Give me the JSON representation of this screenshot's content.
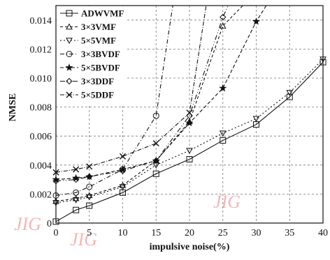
{
  "chart_data": {
    "type": "line",
    "xlabel": "impulsive noise(%)",
    "ylabel": "NMSE",
    "x_ticks": [
      0,
      5,
      10,
      15,
      20,
      25,
      30,
      35,
      40
    ],
    "y_ticks": [
      0,
      0.002,
      0.004,
      0.006,
      0.008,
      0.01,
      0.012,
      0.014
    ],
    "y_tick_labels": [
      "0",
      "0.002",
      "0.004",
      "0.006",
      "0.008",
      "0.010",
      "0.012",
      "0.014"
    ],
    "xlim": [
      0,
      40
    ],
    "ylim": [
      0,
      0.015
    ],
    "grid": true,
    "legend_position": "top-left",
    "watermark": "JIG",
    "series": [
      {
        "name": "ADWVMF",
        "marker": "square",
        "dash": "",
        "x": [
          0,
          3,
          5,
          10,
          15,
          20,
          25,
          30,
          35,
          40
        ],
        "y": [
          0.0001,
          0.0009,
          0.0012,
          0.0021,
          0.0034,
          0.0044,
          0.0057,
          0.0068,
          0.0087,
          0.0111
        ]
      },
      {
        "name": "3×3VMF",
        "marker": "triangle-up",
        "dash": "4,3",
        "x": [
          0,
          3,
          5,
          10,
          15,
          20,
          25,
          28
        ],
        "y": [
          0.0015,
          0.0017,
          0.0019,
          0.0026,
          0.0043,
          0.007,
          0.0136,
          0.015
        ]
      },
      {
        "name": "5×5VMF",
        "marker": "triangle-down",
        "dash": "2,3",
        "x": [
          0,
          3,
          5,
          10,
          15,
          20,
          25,
          30,
          35,
          40
        ],
        "y": [
          0.0014,
          0.0016,
          0.0018,
          0.0025,
          0.004,
          0.005,
          0.0062,
          0.0072,
          0.009,
          0.0113
        ]
      },
      {
        "name": "3×3BVDF",
        "marker": "circle",
        "dash": "6,3,1,3",
        "x": [
          0,
          3,
          5,
          10,
          15,
          17.5
        ],
        "y": [
          0.0019,
          0.0021,
          0.0025,
          0.0037,
          0.0074,
          0.015
        ]
      },
      {
        "name": "5×5BVDF",
        "marker": "star",
        "dash": "5,3",
        "x": [
          0,
          3,
          5,
          10,
          15,
          20,
          25,
          30,
          31.5
        ],
        "y": [
          0.003,
          0.0031,
          0.0032,
          0.0037,
          0.0043,
          0.0069,
          0.0093,
          0.0139,
          0.015
        ]
      },
      {
        "name": "3×3DDF",
        "marker": "diamond",
        "dash": "7,3,1,3,1,3",
        "x": [
          0,
          3,
          5,
          10,
          15,
          20,
          25,
          25.8
        ],
        "y": [
          0.0029,
          0.003,
          0.0032,
          0.0036,
          0.0043,
          0.0074,
          0.0142,
          0.015
        ]
      },
      {
        "name": "5×5DDF",
        "marker": "x",
        "dash": "6,2,1,2",
        "x": [
          0,
          3,
          5,
          10,
          15,
          20,
          22.5
        ],
        "y": [
          0.0035,
          0.0037,
          0.0039,
          0.0046,
          0.0055,
          0.0076,
          0.015
        ]
      }
    ]
  }
}
